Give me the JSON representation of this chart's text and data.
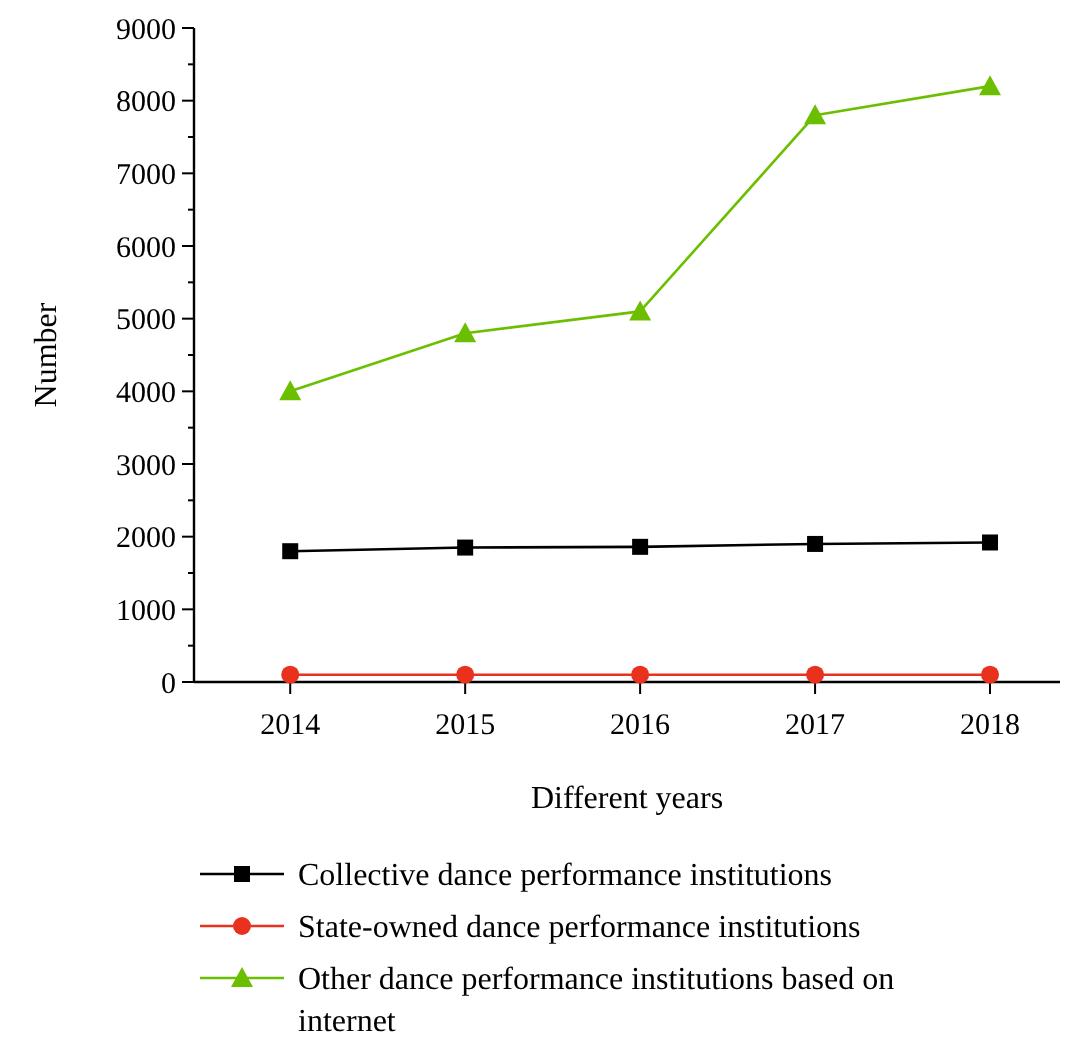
{
  "chart_data": {
    "type": "line",
    "xlabel": "Different years",
    "ylabel": "Number",
    "x": [
      2014,
      2015,
      2016,
      2017,
      2018
    ],
    "xlim": [
      2013.45,
      2018.4
    ],
    "xticks": [
      2014,
      2015,
      2016,
      2017,
      2018
    ],
    "ylim": [
      0,
      9000
    ],
    "yticks": [
      0,
      {
        "value": 500,
        "label": null
      },
      1000,
      {
        "value": 1500,
        "label": null
      },
      2000,
      {
        "value": 2500,
        "label": null
      },
      3000,
      {
        "value": 3500,
        "label": null
      },
      4000,
      {
        "value": 4500,
        "label": null
      },
      5000,
      {
        "value": 5500,
        "label": null
      },
      6000,
      {
        "value": 6500,
        "label": null
      },
      7000,
      {
        "value": 7500,
        "label": null
      },
      8000,
      {
        "value": 8500,
        "label": null
      },
      9000
    ],
    "legend": "bottom",
    "grid": false,
    "line_style": "solid",
    "series": [
      {
        "name": "Collective dance performance institutions",
        "color": "#000000",
        "marker": "square",
        "values": [
          1800,
          1850,
          1860,
          1900,
          1920
        ]
      },
      {
        "name": "State-owned dance performance institutions",
        "color": "#e8321e",
        "marker": "circle",
        "values": [
          100,
          100,
          100,
          100,
          100
        ]
      },
      {
        "name": "Other dance performance institutions based on internet",
        "color": "#6cbf00",
        "marker": "triangle",
        "values": [
          4000,
          4800,
          5100,
          7800,
          8200
        ]
      }
    ]
  }
}
